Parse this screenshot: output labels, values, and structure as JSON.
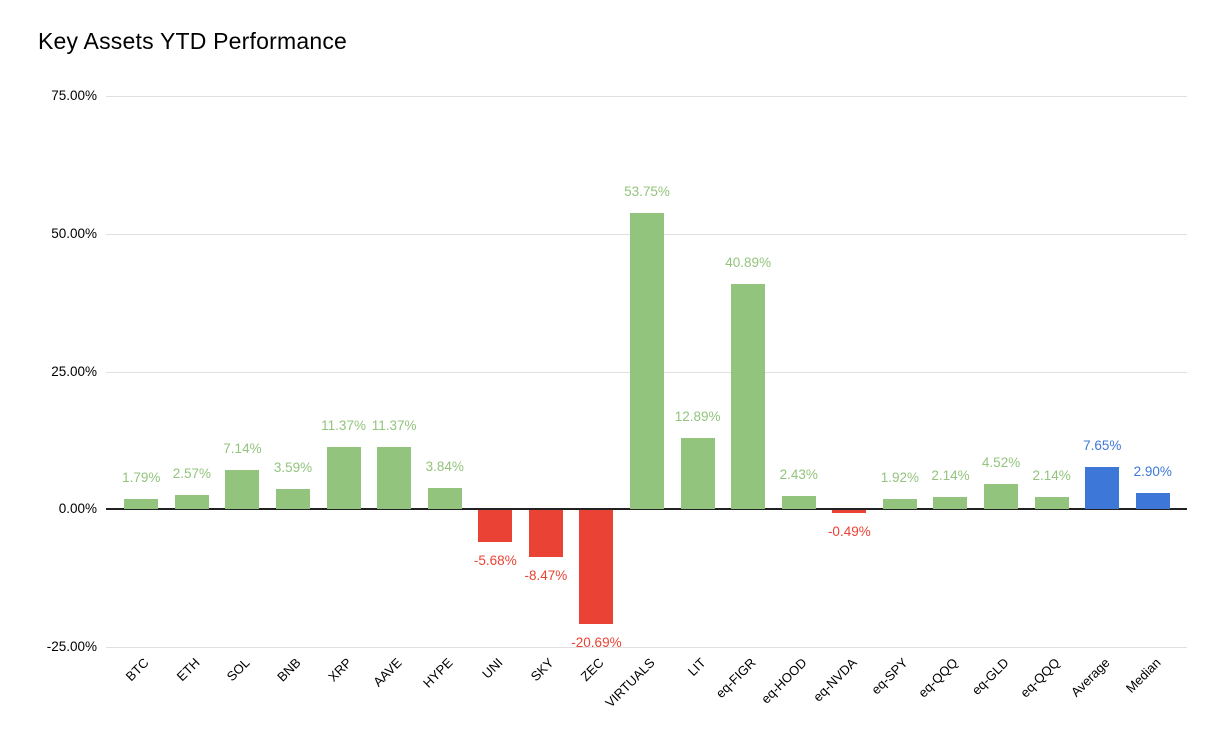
{
  "chart_data": {
    "type": "bar",
    "title": "Key Assets YTD Performance",
    "categories": [
      "BTC",
      "ETH",
      "SOL",
      "BNB",
      "XRP",
      "AAVE",
      "HYPE",
      "UNI",
      "SKY",
      "ZEC",
      "VIRTUALS",
      "LIT",
      "eq-FIGR",
      "eq-HOOD",
      "eq-NVDA",
      "eq-SPY",
      "eq-QQQ",
      "eq-GLD",
      "eq-QQQ",
      "Average",
      "Median"
    ],
    "values": [
      1.79,
      2.57,
      7.14,
      3.59,
      11.37,
      11.37,
      3.84,
      -5.68,
      -8.47,
      -20.69,
      53.75,
      12.89,
      40.89,
      2.43,
      -0.49,
      1.92,
      2.14,
      4.52,
      2.14,
      7.65,
      2.9
    ],
    "point_labels": [
      "1.79%",
      "2.57%",
      "7.14%",
      "3.59%",
      "11.37%",
      "11.37%",
      "3.84%",
      "-5.68%",
      "-8.47%",
      "-20.69%",
      "53.75%",
      "12.89%",
      "40.89%",
      "2.43%",
      "-0.49%",
      "1.92%",
      "2.14%",
      "4.52%",
      "2.14%",
      "7.65%",
      "2.90%"
    ],
    "point_roles": [
      "positive",
      "positive",
      "positive",
      "positive",
      "positive",
      "positive",
      "positive",
      "negative",
      "negative",
      "negative",
      "positive",
      "positive",
      "positive",
      "positive",
      "negative",
      "positive",
      "positive",
      "positive",
      "positive",
      "summary",
      "summary"
    ],
    "palette": {
      "positive": "#93c47d",
      "negative": "#ea4335",
      "summary": "#3d78d8"
    },
    "y_axis": {
      "min": -25,
      "max": 75,
      "ticks": [
        {
          "label": "75.00%",
          "value": 75
        },
        {
          "label": "50.00%",
          "value": 50
        },
        {
          "label": "25.00%",
          "value": 25
        },
        {
          "label": "0.00%",
          "value": 0
        },
        {
          "label": "-25.00%",
          "value": -25
        }
      ]
    },
    "xlabel": "",
    "ylabel": "",
    "grid": true,
    "legend_position": "none",
    "x_label_rotation_deg": 45
  }
}
